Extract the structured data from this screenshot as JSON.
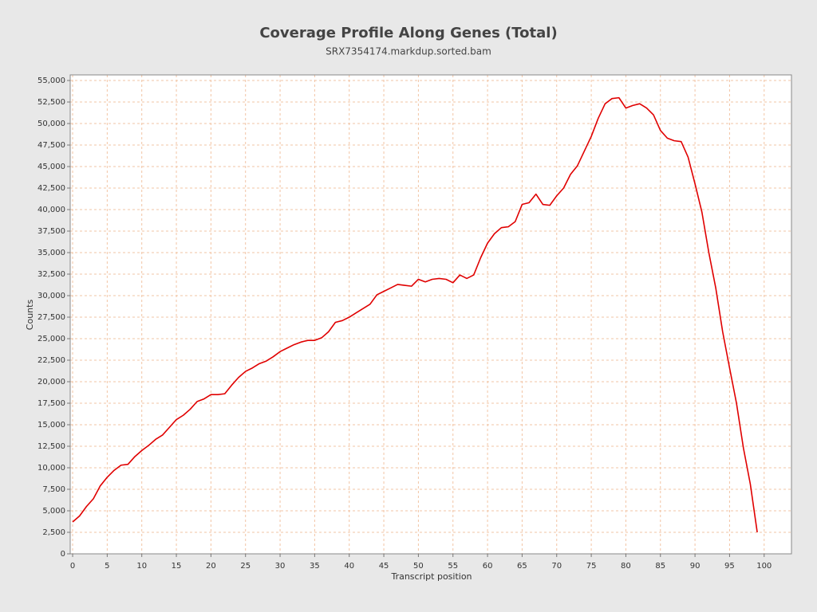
{
  "chart_data": {
    "type": "line",
    "title": "Coverage Profile Along Genes (Total)",
    "subtitle": "SRX7354174.markdup.sorted.bam",
    "x_label": "Transcript position",
    "y_label": "Counts",
    "color": "#e00000",
    "grid": true,
    "x": [
      0,
      1,
      2,
      3,
      4,
      5,
      6,
      7,
      8,
      9,
      10,
      11,
      12,
      13,
      14,
      15,
      16,
      17,
      18,
      19,
      20,
      21,
      22,
      23,
      24,
      25,
      26,
      27,
      28,
      29,
      30,
      31,
      32,
      33,
      34,
      35,
      36,
      37,
      38,
      39,
      40,
      41,
      42,
      43,
      44,
      45,
      46,
      47,
      48,
      49,
      50,
      51,
      52,
      53,
      54,
      55,
      56,
      57,
      58,
      59,
      60,
      61,
      62,
      63,
      64,
      65,
      66,
      67,
      68,
      69,
      70,
      71,
      72,
      73,
      74,
      75,
      76,
      77,
      78,
      79,
      80,
      81,
      82,
      83,
      84,
      85,
      86,
      87,
      88,
      89,
      90,
      91,
      92,
      93,
      94,
      95,
      96,
      97,
      98,
      99
    ],
    "values": [
      3700,
      4400,
      5500,
      6400,
      7900,
      8900,
      9700,
      10300,
      10400,
      11300,
      12000,
      12600,
      13300,
      13800,
      14700,
      15600,
      16100,
      16800,
      17700,
      18000,
      18500,
      18500,
      18600,
      19600,
      20500,
      21200,
      21600,
      22100,
      22400,
      22900,
      23500,
      23900,
      24300,
      24600,
      24800,
      24800,
      25100,
      25800,
      26900,
      27100,
      27500,
      28000,
      28500,
      29000,
      30100,
      30500,
      30900,
      31300,
      31200,
      31100,
      31900,
      31600,
      31900,
      32000,
      31900,
      31500,
      32400,
      32000,
      32400,
      34400,
      36100,
      37200,
      37900,
      38000,
      38600,
      40600,
      40800,
      41800,
      40600,
      40500,
      41600,
      42500,
      44100,
      45100,
      46800,
      48500,
      50600,
      52300,
      52900,
      53000,
      51800,
      52100,
      52300,
      51800,
      51000,
      49200,
      48300,
      48000,
      47900,
      46100,
      43000,
      39700,
      35000,
      30900,
      25800,
      21600,
      17500,
      12300,
      8100,
      2500
    ],
    "xlim": [
      -0.35,
      103.95
    ],
    "ylim": [
      0,
      55650
    ],
    "xticks": [
      0,
      5,
      10,
      15,
      20,
      25,
      30,
      35,
      40,
      45,
      50,
      55,
      60,
      65,
      70,
      75,
      80,
      85,
      90,
      95,
      100
    ],
    "yticks": [
      0,
      {
        "value": 2500,
        "label": "2,500"
      },
      {
        "value": 5000,
        "label": "5,000"
      },
      {
        "value": 7500,
        "label": "7,500"
      },
      {
        "value": 10000,
        "label": "10,000"
      },
      {
        "value": 12500,
        "label": "12,500"
      },
      {
        "value": 15000,
        "label": "15,000"
      },
      {
        "value": 17500,
        "label": "17,500"
      },
      {
        "value": 20000,
        "label": "20,000"
      },
      {
        "value": 22500,
        "label": "22,500"
      },
      {
        "value": 25000,
        "label": "25,000"
      },
      {
        "value": 27500,
        "label": "27,500"
      },
      {
        "value": 30000,
        "label": "30,000"
      },
      {
        "value": 32500,
        "label": "32,500"
      },
      {
        "value": 35000,
        "label": "35,000"
      },
      {
        "value": 37500,
        "label": "37,500"
      },
      {
        "value": 40000,
        "label": "40,000"
      },
      {
        "value": 42500,
        "label": "42,500"
      },
      {
        "value": 45000,
        "label": "45,000"
      },
      {
        "value": 47500,
        "label": "47,500"
      },
      {
        "value": 50000,
        "label": "50,000"
      },
      {
        "value": 52500,
        "label": "52,500"
      },
      {
        "value": 55000,
        "label": "55,000"
      }
    ]
  }
}
